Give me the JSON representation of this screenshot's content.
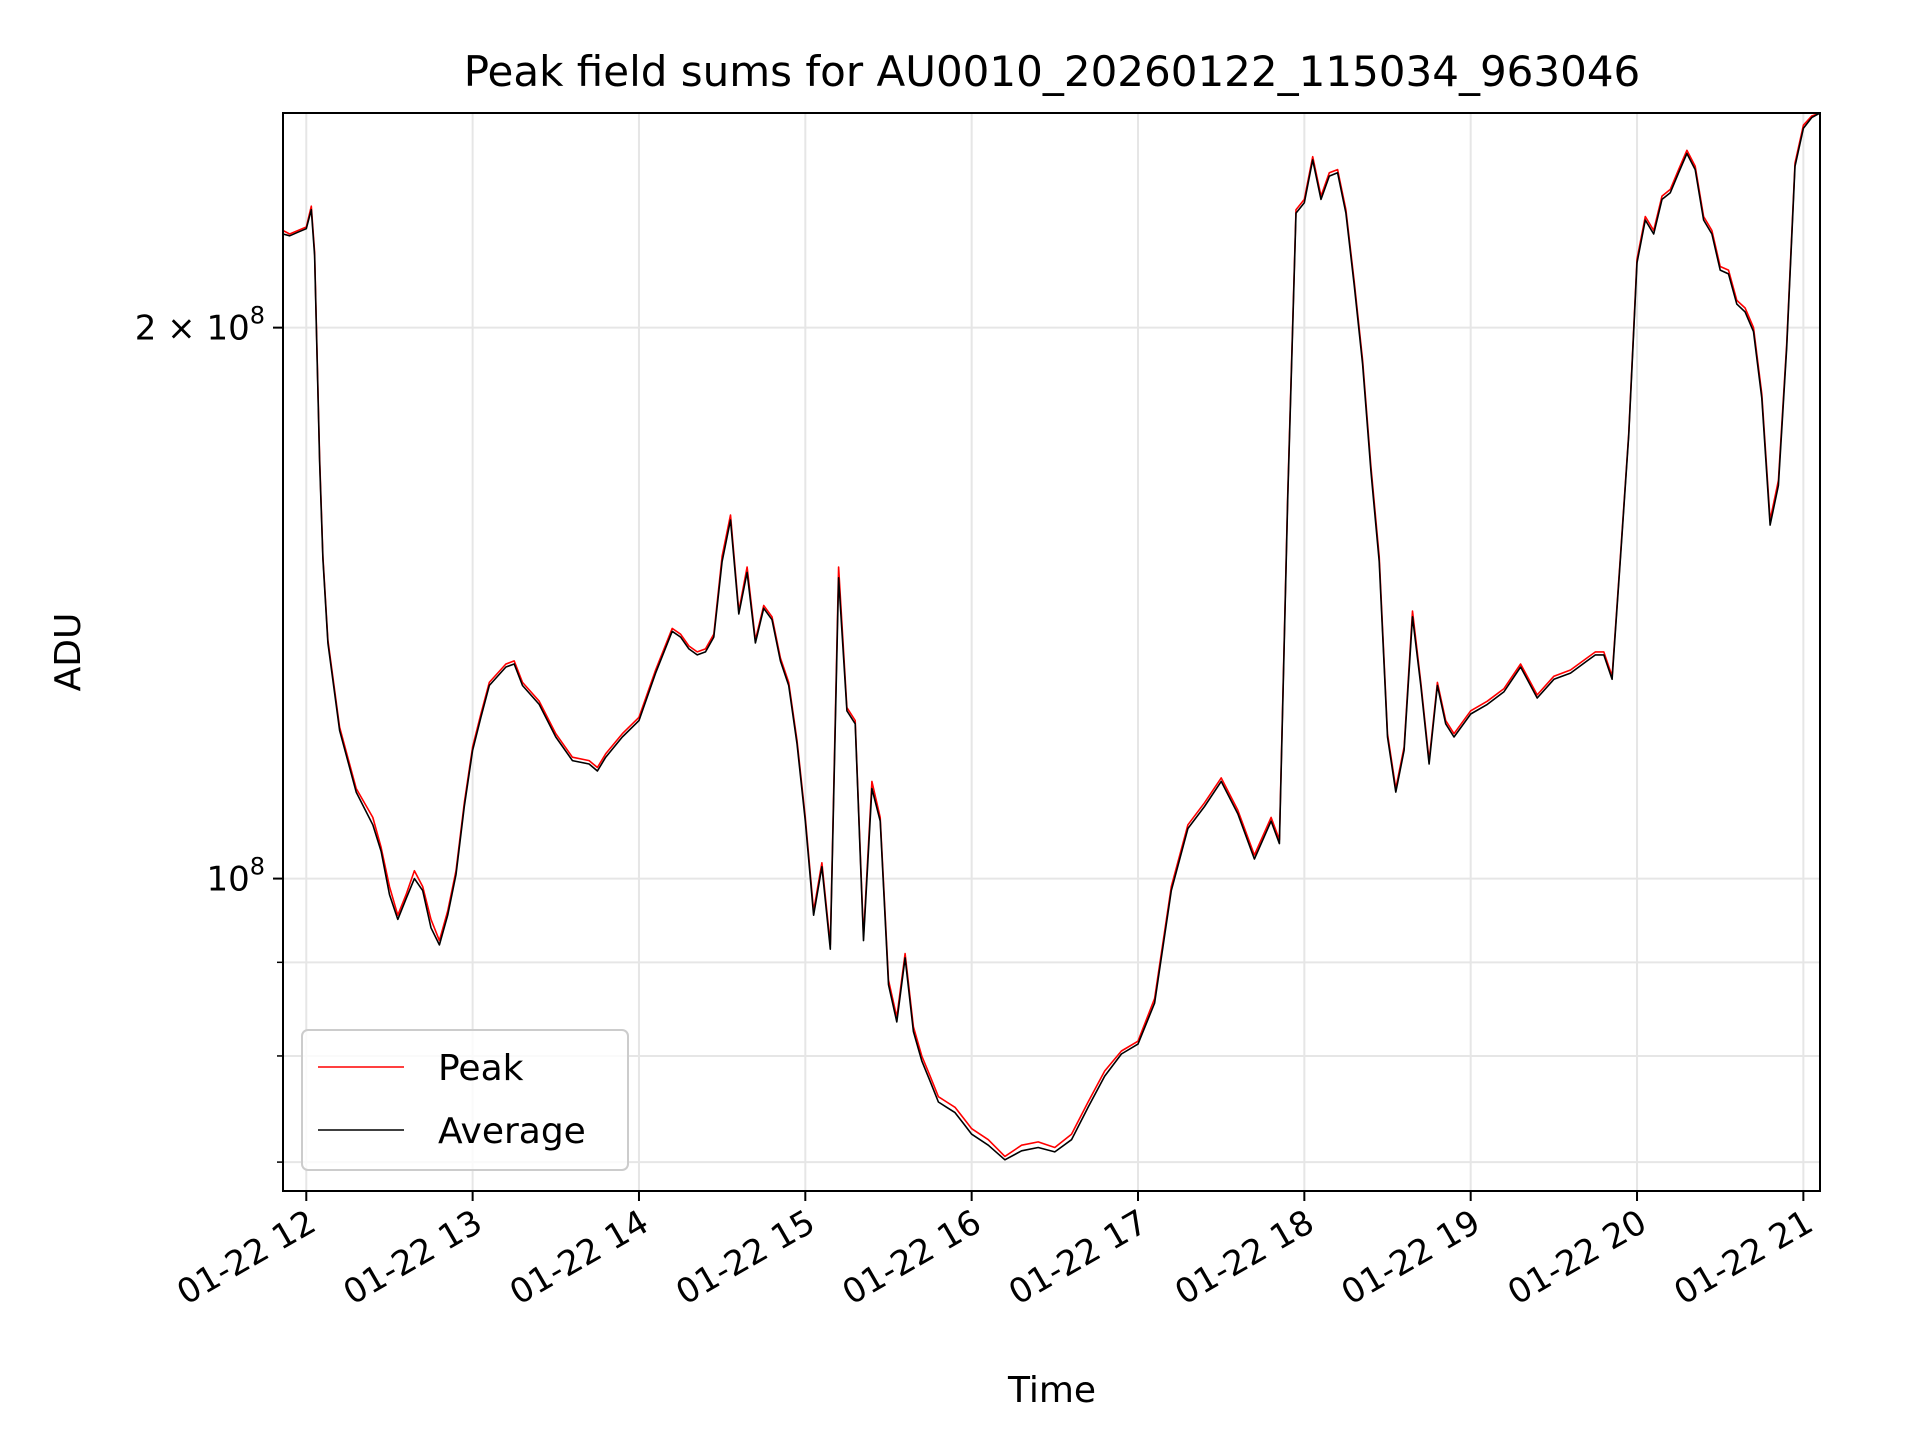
{
  "chart_data": {
    "type": "line",
    "title": "Peak field sums for AU0010_20260122_115034_963046",
    "xlabel": "Time",
    "ylabel": "ADU",
    "x_unit": "hour of day (2026-01-22)",
    "xlim": [
      11.86,
      21.1
    ],
    "ylim": [
      67500000,
      262000000
    ],
    "yscale": "log",
    "grid": true,
    "legend_position": "lower-left",
    "x_ticks": [
      {
        "value": 12,
        "label": "01-22 12"
      },
      {
        "value": 13,
        "label": "01-22 13"
      },
      {
        "value": 14,
        "label": "01-22 14"
      },
      {
        "value": 15,
        "label": "01-22 15"
      },
      {
        "value": 16,
        "label": "01-22 16"
      },
      {
        "value": 17,
        "label": "01-22 17"
      },
      {
        "value": 18,
        "label": "01-22 18"
      },
      {
        "value": 19,
        "label": "01-22 19"
      },
      {
        "value": 20,
        "label": "01-22 20"
      },
      {
        "value": 21,
        "label": "01-22 21"
      }
    ],
    "y_major_ticks": [
      {
        "value": 100000000,
        "base": "10",
        "exp": "8",
        "mantissa": ""
      },
      {
        "value": 200000000,
        "base": "10",
        "exp": "8",
        "mantissa": "2 × "
      }
    ],
    "y_minor_gridlines": [
      70000000,
      80000000,
      90000000,
      300000000
    ],
    "series": [
      {
        "name": "Peak",
        "color": "#ff0000",
        "x": [
          11.86,
          11.9,
          11.95,
          12.0,
          12.03,
          12.05,
          12.08,
          12.1,
          12.13,
          12.2,
          12.3,
          12.4,
          12.45,
          12.5,
          12.55,
          12.6,
          12.65,
          12.7,
          12.75,
          12.8,
          12.85,
          12.9,
          12.95,
          13.0,
          13.05,
          13.1,
          13.2,
          13.25,
          13.3,
          13.4,
          13.5,
          13.6,
          13.7,
          13.75,
          13.8,
          13.9,
          14.0,
          14.1,
          14.2,
          14.25,
          14.3,
          14.35,
          14.4,
          14.45,
          14.5,
          14.55,
          14.6,
          14.65,
          14.7,
          14.75,
          14.8,
          14.85,
          14.9,
          14.95,
          15.0,
          15.05,
          15.1,
          15.15,
          15.2,
          15.25,
          15.3,
          15.35,
          15.4,
          15.45,
          15.5,
          15.55,
          15.6,
          15.65,
          15.7,
          15.75,
          15.8,
          15.85,
          15.9,
          15.95,
          16.0,
          16.1,
          16.2,
          16.3,
          16.4,
          16.5,
          16.6,
          16.7,
          16.8,
          16.9,
          17.0,
          17.1,
          17.2,
          17.3,
          17.4,
          17.5,
          17.6,
          17.7,
          17.8,
          17.85,
          17.9,
          17.95,
          18.0,
          18.05,
          18.1,
          18.15,
          18.2,
          18.25,
          18.3,
          18.35,
          18.4,
          18.45,
          18.5,
          18.55,
          18.6,
          18.65,
          18.7,
          18.75,
          18.8,
          18.85,
          18.9,
          19.0,
          19.1,
          19.2,
          19.3,
          19.4,
          19.5,
          19.6,
          19.7,
          19.75,
          19.8,
          19.85,
          19.9,
          19.95,
          20.0,
          20.05,
          20.1,
          20.15,
          20.2,
          20.25,
          20.3,
          20.35,
          20.4,
          20.45,
          20.5,
          20.55,
          20.6,
          20.65,
          20.7,
          20.75,
          20.8,
          20.85,
          20.9,
          20.95,
          21.0,
          21.05,
          21.1
        ],
        "y": [
          226000000,
          225000000,
          226000000,
          227000000,
          233000000,
          220000000,
          170000000,
          150000000,
          135000000,
          121000000,
          112000000,
          108000000,
          104000000,
          99000000,
          95500000,
          98000000,
          101000000,
          99000000,
          95000000,
          92500000,
          96000000,
          101000000,
          110000000,
          118000000,
          123000000,
          128000000,
          131000000,
          131500000,
          128000000,
          125000000,
          120000000,
          116500000,
          116000000,
          115000000,
          117000000,
          120000000,
          122500000,
          130000000,
          137000000,
          136000000,
          134000000,
          133000000,
          133500000,
          136000000,
          150000000,
          158000000,
          140000000,
          148000000,
          135000000,
          141000000,
          139000000,
          132000000,
          128000000,
          119000000,
          108000000,
          96000000,
          102000000,
          92000000,
          148000000,
          124000000,
          122000000,
          93000000,
          113000000,
          108000000,
          88000000,
          84000000,
          91000000,
          83000000,
          80000000,
          78000000,
          76000000,
          75500000,
          75000000,
          74000000,
          73000000,
          72000000,
          70500000,
          71500000,
          71800000,
          71300000,
          72500000,
          75500000,
          78500000,
          80500000,
          81500000,
          86000000,
          99000000,
          107000000,
          110000000,
          113500000,
          109000000,
          103000000,
          108000000,
          105000000,
          162000000,
          232000000,
          235000000,
          248000000,
          236000000,
          243000000,
          244000000,
          232000000,
          212000000,
          192000000,
          168000000,
          150000000,
          120000000,
          112000000,
          118000000,
          140000000,
          128000000,
          116000000,
          128000000,
          122000000,
          120000000,
          123500000,
          125000000,
          127000000,
          131000000,
          126000000,
          129000000,
          130000000,
          132000000,
          133000000,
          133000000,
          129000000,
          150000000,
          175000000,
          218000000,
          230000000,
          226000000,
          236000000,
          238000000,
          244000000,
          250000000,
          245000000,
          230000000,
          226000000,
          216000000,
          215000000,
          207000000,
          205000000,
          200000000,
          184000000,
          157000000,
          165000000,
          196000000,
          246000000,
          258000000,
          261000000,
          262000000
        ]
      },
      {
        "name": "Average",
        "color": "#000000",
        "x": [
          11.86,
          11.9,
          11.95,
          12.0,
          12.03,
          12.05,
          12.08,
          12.1,
          12.13,
          12.2,
          12.3,
          12.4,
          12.45,
          12.5,
          12.55,
          12.6,
          12.65,
          12.7,
          12.75,
          12.8,
          12.85,
          12.9,
          12.95,
          13.0,
          13.05,
          13.1,
          13.2,
          13.25,
          13.3,
          13.4,
          13.5,
          13.6,
          13.7,
          13.75,
          13.8,
          13.9,
          14.0,
          14.1,
          14.2,
          14.25,
          14.3,
          14.35,
          14.4,
          14.45,
          14.5,
          14.55,
          14.6,
          14.65,
          14.7,
          14.75,
          14.8,
          14.85,
          14.9,
          14.95,
          15.0,
          15.05,
          15.1,
          15.15,
          15.2,
          15.25,
          15.3,
          15.35,
          15.4,
          15.45,
          15.5,
          15.55,
          15.6,
          15.65,
          15.7,
          15.75,
          15.8,
          15.85,
          15.9,
          15.95,
          16.0,
          16.1,
          16.2,
          16.3,
          16.4,
          16.5,
          16.6,
          16.7,
          16.8,
          16.9,
          17.0,
          17.1,
          17.2,
          17.3,
          17.4,
          17.5,
          17.6,
          17.7,
          17.8,
          17.85,
          17.9,
          17.95,
          18.0,
          18.05,
          18.1,
          18.15,
          18.2,
          18.25,
          18.3,
          18.35,
          18.4,
          18.45,
          18.5,
          18.55,
          18.6,
          18.65,
          18.7,
          18.75,
          18.8,
          18.85,
          18.9,
          19.0,
          19.1,
          19.2,
          19.3,
          19.4,
          19.5,
          19.6,
          19.7,
          19.75,
          19.8,
          19.85,
          19.9,
          19.95,
          20.0,
          20.05,
          20.1,
          20.15,
          20.2,
          20.25,
          20.3,
          20.35,
          20.4,
          20.45,
          20.5,
          20.55,
          20.6,
          20.65,
          20.7,
          20.75,
          20.8,
          20.85,
          20.9,
          20.95,
          21.0,
          21.05,
          21.1
        ],
        "y": [
          225000000,
          224500000,
          225500000,
          226500000,
          232000000,
          219000000,
          169000000,
          149500000,
          134500000,
          120500000,
          111500000,
          107000000,
          103500000,
          98000000,
          95000000,
          97500000,
          100000000,
          98500000,
          94000000,
          92000000,
          95500000,
          100500000,
          109500000,
          117500000,
          122500000,
          127500000,
          130500000,
          131000000,
          127500000,
          124500000,
          119500000,
          116000000,
          115500000,
          114500000,
          116500000,
          119500000,
          122000000,
          129500000,
          136500000,
          135500000,
          133500000,
          132500000,
          133000000,
          135500000,
          149000000,
          157000000,
          139500000,
          147000000,
          134500000,
          140500000,
          138500000,
          131500000,
          127500000,
          118500000,
          107500000,
          95500000,
          101500000,
          91500000,
          146000000,
          123500000,
          121500000,
          92500000,
          112000000,
          107500000,
          87500000,
          83500000,
          90500000,
          82500000,
          79500000,
          77500000,
          75500000,
          75000000,
          74500000,
          73500000,
          72500000,
          71500000,
          70200000,
          71000000,
          71300000,
          70900000,
          72000000,
          75000000,
          78000000,
          80200000,
          81200000,
          85500000,
          98500000,
          106500000,
          109500000,
          113000000,
          108500000,
          102500000,
          107500000,
          104500000,
          161000000,
          231000000,
          234000000,
          247000000,
          235000000,
          242000000,
          243000000,
          231000000,
          211000000,
          191000000,
          167000000,
          149000000,
          119500000,
          111500000,
          117500000,
          139000000,
          127500000,
          115500000,
          127500000,
          121500000,
          119500000,
          123000000,
          124500000,
          126500000,
          130500000,
          125500000,
          128500000,
          129500000,
          131500000,
          132500000,
          132500000,
          128500000,
          149500000,
          174500000,
          217000000,
          229000000,
          225000000,
          235000000,
          237000000,
          243000000,
          249000000,
          244000000,
          229000000,
          225000000,
          215000000,
          214000000,
          206000000,
          204000000,
          199000000,
          183000000,
          156000000,
          164000000,
          195000000,
          245000000,
          257000000,
          260500000,
          262000000
        ]
      }
    ]
  }
}
